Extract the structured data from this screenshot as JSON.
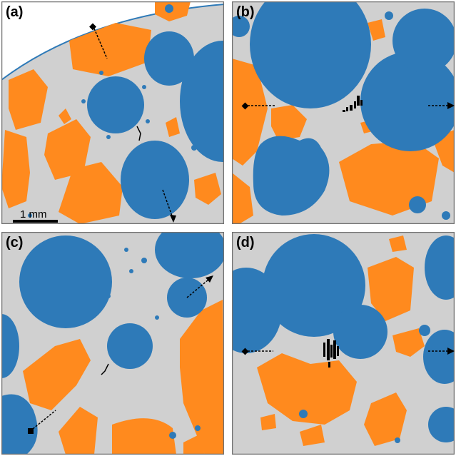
{
  "figure": {
    "panels": [
      {
        "label": "(a)"
      },
      {
        "label": "(b)"
      },
      {
        "label": "(c)"
      },
      {
        "label": "(d)"
      }
    ],
    "scale_bar": {
      "label": "1 mm"
    },
    "colors": {
      "matrix": "#d0d0d0",
      "blue_particles": "#2e7ab8",
      "orange_particles": "#ff8a1e",
      "cracks_voids": "#000000",
      "border": "#707070"
    }
  }
}
